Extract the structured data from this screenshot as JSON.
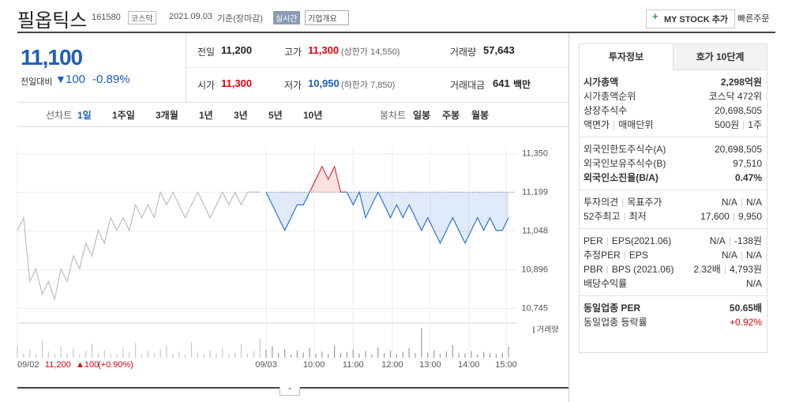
{
  "header": {
    "title": "필옵틱스",
    "code": "161580",
    "market": "코스닥",
    "date": "2021.09.03",
    "basis": "기준(장마감)",
    "realtime": "실시간",
    "company": "기업개요",
    "mystock": "MY STOCK 추가",
    "quick_order": "빠른주문"
  },
  "quote": {
    "price": "11,100",
    "change_label": "전일대비",
    "change": "100",
    "change_pct": "-0.89%",
    "fields": [
      {
        "label": "전일",
        "value": "11,200"
      },
      {
        "label": "고가",
        "value": "11,300",
        "note": "(상한가 14,550)"
      },
      {
        "label": "거래량",
        "value": "57,643"
      },
      {
        "label": "시가",
        "value": "11,300"
      },
      {
        "label": "저가",
        "value": "10,950",
        "note": "(하한가 7,850)"
      },
      {
        "label": "거래대금",
        "value": "641",
        "unit": "백만"
      }
    ]
  },
  "period_tabs": {
    "label": "선차트",
    "items": [
      "1일",
      "1주일",
      "3개월",
      "1년",
      "3년",
      "5년",
      "10년"
    ]
  },
  "candle_tabs": {
    "label": "봉차트",
    "items": [
      "일봉",
      "주봉",
      "월봉"
    ]
  },
  "chart_data": {
    "type": "line",
    "xlim": [
      0,
      80
    ],
    "xticks": [
      {
        "value": 0,
        "label": "09/02"
      },
      {
        "value": 40,
        "label": "09/03"
      },
      {
        "value": 47.7,
        "label": "10:00"
      },
      {
        "value": 54,
        "label": "11:00"
      },
      {
        "value": 60.3,
        "label": "12:00"
      },
      {
        "value": 66.4,
        "label": "13:00"
      },
      {
        "value": 72.6,
        "label": "14:00"
      },
      {
        "value": 78.6,
        "label": "15:00"
      }
    ],
    "ylim": [
      10700,
      11380
    ],
    "yticks": [
      {
        "value": 11350,
        "label": "11,350"
      },
      {
        "value": 11199,
        "label": "11,199"
      },
      {
        "value": 11048,
        "label": "11,048"
      },
      {
        "value": 10896,
        "label": "10,896"
      },
      {
        "value": 10745,
        "label": "10,745"
      }
    ],
    "reference": 11200,
    "up_color": "#e0333a",
    "down_color": "#2f74d0",
    "series": [
      {
        "color": "#bdbdbd",
        "values": [
          11050,
          11100,
          10850,
          10900,
          10800,
          10850,
          10780,
          10900,
          10850,
          10950,
          10900,
          11000,
          10950,
          11050,
          11000,
          11100,
          11050,
          11100,
          11050,
          11150,
          11100,
          11150,
          11100,
          11200,
          11150,
          11200,
          11150,
          11100,
          11150,
          11200,
          11150,
          11100,
          11150,
          11200,
          11150,
          11200,
          11150,
          11200,
          11200,
          11200,
          null,
          null,
          null,
          null,
          null,
          null,
          null,
          null,
          null,
          null,
          null,
          null,
          null,
          null,
          null,
          null,
          null,
          null,
          null,
          null,
          null,
          null,
          null,
          null,
          null,
          null,
          null,
          null,
          null,
          null,
          null,
          null,
          null,
          null,
          null,
          null,
          null,
          null,
          null,
          null
        ]
      },
      {
        "color": "#2f74d0",
        "values": [
          null,
          null,
          null,
          null,
          null,
          null,
          null,
          null,
          null,
          null,
          null,
          null,
          null,
          null,
          null,
          null,
          null,
          null,
          null,
          null,
          null,
          null,
          null,
          null,
          null,
          null,
          null,
          null,
          null,
          null,
          null,
          null,
          null,
          null,
          null,
          null,
          null,
          null,
          null,
          null,
          11200,
          11150,
          11100,
          11050,
          11100,
          11150,
          11150,
          11200,
          11250,
          11300,
          11250,
          11300,
          11200,
          11200,
          11150,
          11200,
          11100,
          11150,
          11200,
          11150,
          11100,
          11150,
          11100,
          11150,
          11100,
          11050,
          11100,
          11050,
          11000,
          11050,
          11100,
          11050,
          11000,
          11050,
          11100,
          11050,
          11100,
          11050,
          11050,
          11100
        ]
      },
      {
        "name": "거래량",
        "type": "bar",
        "color": "#9a9aa6",
        "axis": "y2",
        "values": [
          2400,
          900,
          1500,
          600,
          3300,
          1200,
          700,
          2100,
          900,
          1800,
          600,
          1300,
          2700,
          900,
          1500,
          800,
          600,
          1900,
          1100,
          2800,
          700,
          1300,
          900,
          1600,
          2400,
          800,
          1200,
          700,
          3000,
          1000,
          600,
          1400,
          900,
          1800,
          700,
          1100,
          2600,
          800,
          1300,
          3600,
          1500,
          2200,
          900,
          1700,
          600,
          1400,
          1000,
          1900,
          800,
          1200,
          700,
          2300,
          900,
          1100,
          1600,
          800,
          1300,
          600,
          2000,
          900,
          1400,
          700,
          1200,
          1800,
          900,
          5600,
          1000,
          1500,
          700,
          1200,
          2400,
          900,
          800,
          1300,
          600,
          1100,
          900,
          700,
          1000,
          2100
        ]
      }
    ],
    "y2lim": [
      0,
      6000
    ]
  },
  "prev_day": {
    "price": "11,200",
    "change": "▲100",
    "pct": "(+0.90%)"
  },
  "invest": {
    "tabs": [
      "투자정보",
      "호가 10단계"
    ],
    "groups": [
      [
        {
          "label": [
            "시가총액"
          ],
          "value": [
            "2,298억원"
          ],
          "bold": true
        },
        {
          "label": [
            "시가총액순위"
          ],
          "value": [
            "코스닥 472위"
          ]
        },
        {
          "label": [
            "상장주식수"
          ],
          "value": [
            "20,698,505"
          ]
        },
        {
          "label": [
            "액면가",
            "매매단위"
          ],
          "value": [
            "500원",
            "1주"
          ]
        }
      ],
      [
        {
          "label": [
            "외국인한도주식수(A)"
          ],
          "value": [
            "20,698,505"
          ]
        },
        {
          "label": [
            "외국인보유주식수(B)"
          ],
          "value": [
            "97,510"
          ]
        },
        {
          "label": [
            "외국인소진율(B/A)"
          ],
          "value": [
            "0.47%"
          ],
          "bold": true
        }
      ],
      [
        {
          "label": [
            "투자의견",
            "목표주가"
          ],
          "value": [
            "N/A",
            "N/A"
          ]
        },
        {
          "label": [
            "52주최고",
            "최저"
          ],
          "value": [
            "17,600",
            "9,950"
          ]
        }
      ],
      [
        {
          "label": [
            "PER",
            "EPS(2021.06)"
          ],
          "value": [
            "N/A",
            "-138원"
          ]
        },
        {
          "label": [
            "추정PER",
            "EPS"
          ],
          "value": [
            "N/A",
            "N/A"
          ]
        },
        {
          "label": [
            "PBR",
            "BPS (2021.06)"
          ],
          "value": [
            "2.32배",
            "4,793원"
          ]
        },
        {
          "label": [
            "배당수익률"
          ],
          "value": [
            "N/A"
          ]
        }
      ],
      [
        {
          "label": [
            "동일업종 PER"
          ],
          "value": [
            "50.65배"
          ],
          "bold": true
        },
        {
          "label": [
            "동일업종 등락률"
          ],
          "value": [
            "+0.92%"
          ],
          "red": true
        }
      ]
    ]
  }
}
